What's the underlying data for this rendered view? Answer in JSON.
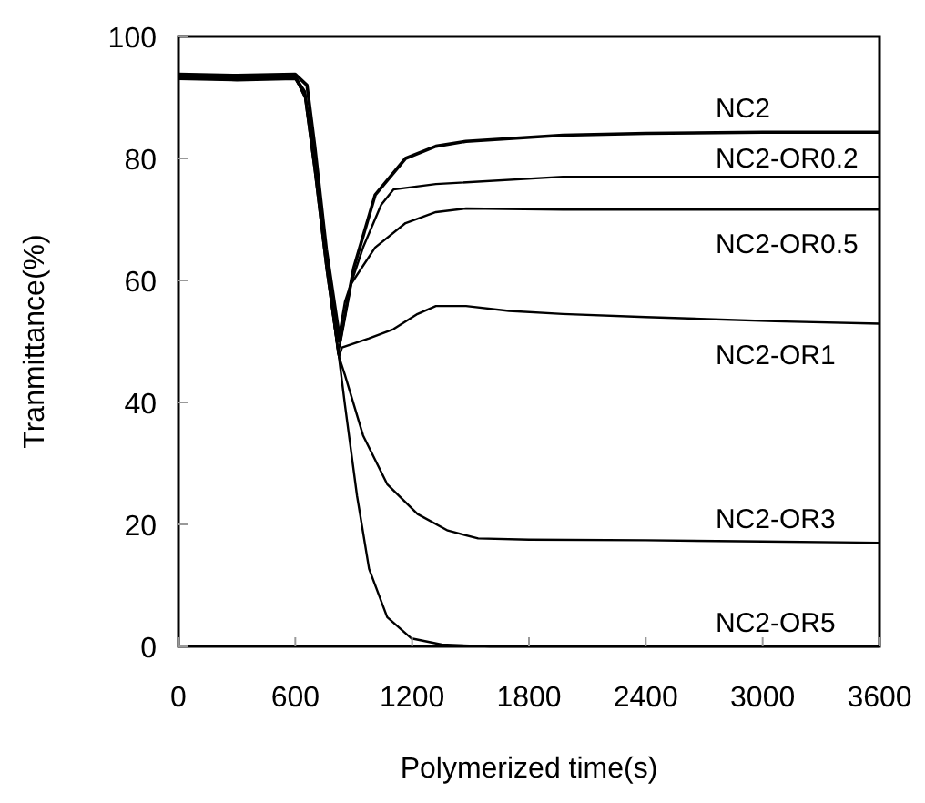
{
  "chart_data": {
    "type": "line",
    "xlabel": "Polymerized time(s)",
    "ylabel": "Tranmittance(%)",
    "xlim": [
      0,
      3600
    ],
    "xticks": [
      0,
      600,
      1200,
      1800,
      2400,
      3000,
      3600
    ],
    "ylim": [
      0,
      100
    ],
    "yticks": [
      0,
      20,
      40,
      60,
      80,
      100
    ],
    "grid": false,
    "marker": "none",
    "line_style": "solid",
    "series": [
      {
        "name": "NC2",
        "color": "#000000",
        "x": [
          0,
          300,
          600,
          660,
          700,
          760,
          830,
          900,
          1010,
          1166,
          1322,
          1477,
          1974,
          2400,
          3000,
          3600
        ],
        "values": [
          93.8,
          93.6,
          93.8,
          92,
          82,
          65,
          50,
          62,
          74,
          80,
          82,
          82.8,
          83.8,
          84.1,
          84.3,
          84.3
        ]
      },
      {
        "name": "NC2-OR0.2",
        "color": "#000000",
        "x": [
          0,
          300,
          600,
          650,
          700,
          760,
          820,
          855,
          948,
          1041,
          1104,
          1322,
          1974,
          2400,
          3000,
          3600
        ],
        "values": [
          93.5,
          93.2,
          93.4,
          91,
          80,
          64,
          50,
          56.5,
          65.4,
          72.4,
          74.9,
          75.8,
          77,
          77,
          77,
          77
        ]
      },
      {
        "name": "NC2-OR0.5",
        "color": "#000000",
        "x": [
          0,
          300,
          600,
          650,
          700,
          760,
          820,
          886,
          1010,
          1166,
          1322,
          1477,
          1974,
          2400,
          3000,
          3600
        ],
        "values": [
          93,
          92.8,
          93,
          90.5,
          79,
          63,
          48,
          59.4,
          65.4,
          69.4,
          71.2,
          71.8,
          71.6,
          71.6,
          71.6,
          71.6
        ]
      },
      {
        "name": "NC2-OR1",
        "color": "#000000",
        "x": [
          0,
          300,
          600,
          650,
          700,
          760,
          824,
          840,
          979,
          1104,
          1228,
          1322,
          1477,
          1697,
          1974,
          2400,
          3064,
          3600
        ],
        "values": [
          93.2,
          92.9,
          93.2,
          90,
          78,
          62,
          47.5,
          49,
          50.5,
          52,
          54.5,
          55.8,
          55.8,
          55,
          54.5,
          54,
          53.3,
          52.9
        ]
      },
      {
        "name": "NC2-OR3",
        "color": "#000000",
        "x": [
          0,
          300,
          600,
          650,
          700,
          760,
          824,
          855,
          948,
          1072,
          1228,
          1383,
          1539,
          1800,
          2400,
          3000,
          3600
        ],
        "values": [
          93.4,
          93.1,
          93.3,
          90,
          78,
          62,
          47.5,
          44.5,
          34.6,
          26.6,
          21.7,
          19,
          17.7,
          17.5,
          17.4,
          17.2,
          17
        ]
      },
      {
        "name": "NC2-OR5",
        "color": "#000000",
        "x": [
          0,
          300,
          600,
          650,
          700,
          760,
          824,
          855,
          917,
          979,
          1072,
          1197,
          1352,
          1600,
          2400,
          3000,
          3600
        ],
        "values": [
          93.6,
          93.3,
          93.5,
          90.5,
          79,
          63,
          47.5,
          39.6,
          24.7,
          12.7,
          4.8,
          1.3,
          0.3,
          0,
          0,
          0,
          0
        ]
      }
    ]
  }
}
